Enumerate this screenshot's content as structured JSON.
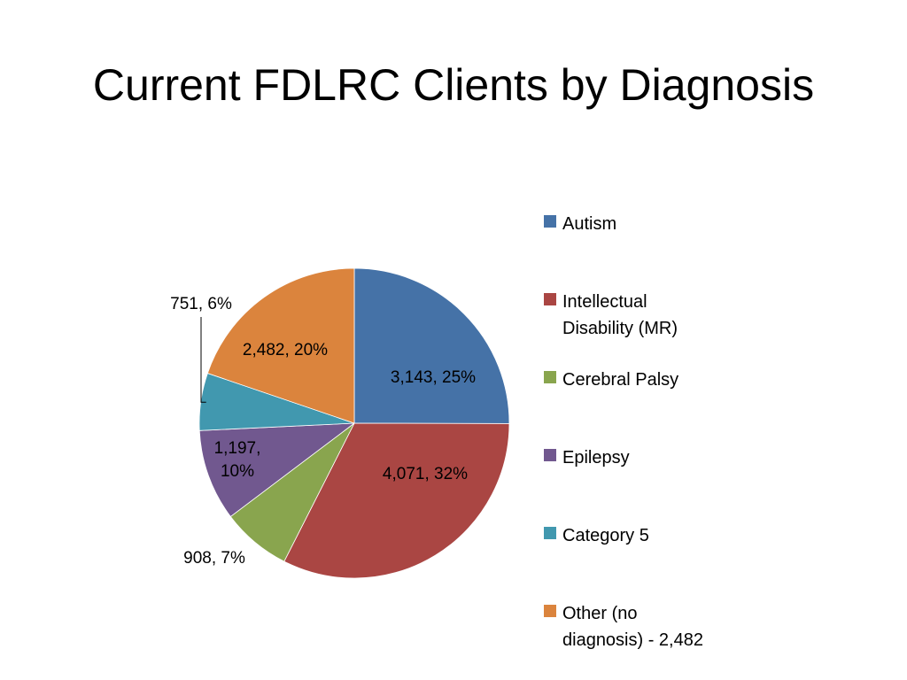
{
  "slide": {
    "title": "Current FDLRC Clients by Diagnosis"
  },
  "chart_data": {
    "type": "pie",
    "title": "Current FDLRC Clients by Diagnosis",
    "legend_position": "right",
    "start_angle_deg": 0,
    "direction": "clockwise",
    "slices": [
      {
        "name": "Autism",
        "legend_lines": [
          "Autism"
        ],
        "value": 3143,
        "percent": 25,
        "label_lines": [
          "3,143, 25%"
        ],
        "color": "#4572A7"
      },
      {
        "name": "Intellectual Disability (MR)",
        "legend_lines": [
          "Intellectual",
          "Disability (MR)"
        ],
        "value": 4071,
        "percent": 32,
        "label_lines": [
          "4,071, 32%"
        ],
        "color": "#AA4643"
      },
      {
        "name": "Cerebral Palsy",
        "legend_lines": [
          "Cerebral Palsy"
        ],
        "value": 908,
        "percent": 7,
        "label_lines": [
          "908, 7%"
        ],
        "color": "#89A54E"
      },
      {
        "name": "Epilepsy",
        "legend_lines": [
          "Epilepsy"
        ],
        "value": 1197,
        "percent": 10,
        "label_lines": [
          "1,197,",
          "10%"
        ],
        "color": "#71588F"
      },
      {
        "name": "Category 5",
        "legend_lines": [
          "Category 5"
        ],
        "value": 751,
        "percent": 6,
        "label_lines": [
          "751, 6%"
        ],
        "color": "#4198AF"
      },
      {
        "name": "Other (no diagnosis) - 2,482",
        "legend_lines": [
          "Other (no",
          "diagnosis) - 2,482"
        ],
        "value": 2482,
        "percent": 20,
        "label_lines": [
          "2,482, 20%"
        ],
        "color": "#DB843D"
      }
    ]
  }
}
